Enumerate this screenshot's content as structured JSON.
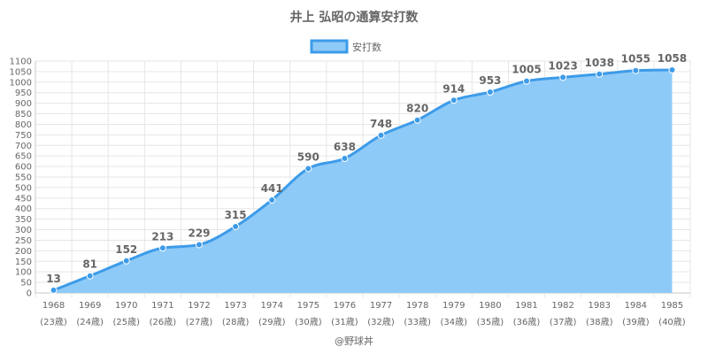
{
  "chart_data": {
    "type": "area",
    "title": "井上 弘昭の通算安打数",
    "legend": {
      "label": "安打数",
      "placement": "top-center"
    },
    "x": [
      "1968",
      "1969",
      "1970",
      "1971",
      "1972",
      "1973",
      "1974",
      "1975",
      "1976",
      "1977",
      "1978",
      "1979",
      "1980",
      "1981",
      "1982",
      "1983",
      "1984",
      "1985"
    ],
    "x_sublabels": [
      "(23歳)",
      "(24歳)",
      "(25歳)",
      "(26歳)",
      "(27歳)",
      "(28歳)",
      "(29歳)",
      "(30歳)",
      "(31歳)",
      "(32歳)",
      "(33歳)",
      "(34歳)",
      "(35歳)",
      "(36歳)",
      "(37歳)",
      "(38歳)",
      "(39歳)",
      "(40歳)"
    ],
    "series": [
      {
        "name": "安打数",
        "values": [
          13,
          81,
          152,
          213,
          229,
          315,
          441,
          590,
          638,
          748,
          820,
          914,
          953,
          1005,
          1023,
          1038,
          1055,
          1058
        ]
      }
    ],
    "ylim": [
      0,
      1100
    ],
    "ytick_step": 50,
    "grid": true,
    "colors": {
      "line": "#3d9be9",
      "fill": "#8ecaf7",
      "grid": "#e6e6e6",
      "text": "#666666"
    }
  },
  "credit": "@野球丼"
}
